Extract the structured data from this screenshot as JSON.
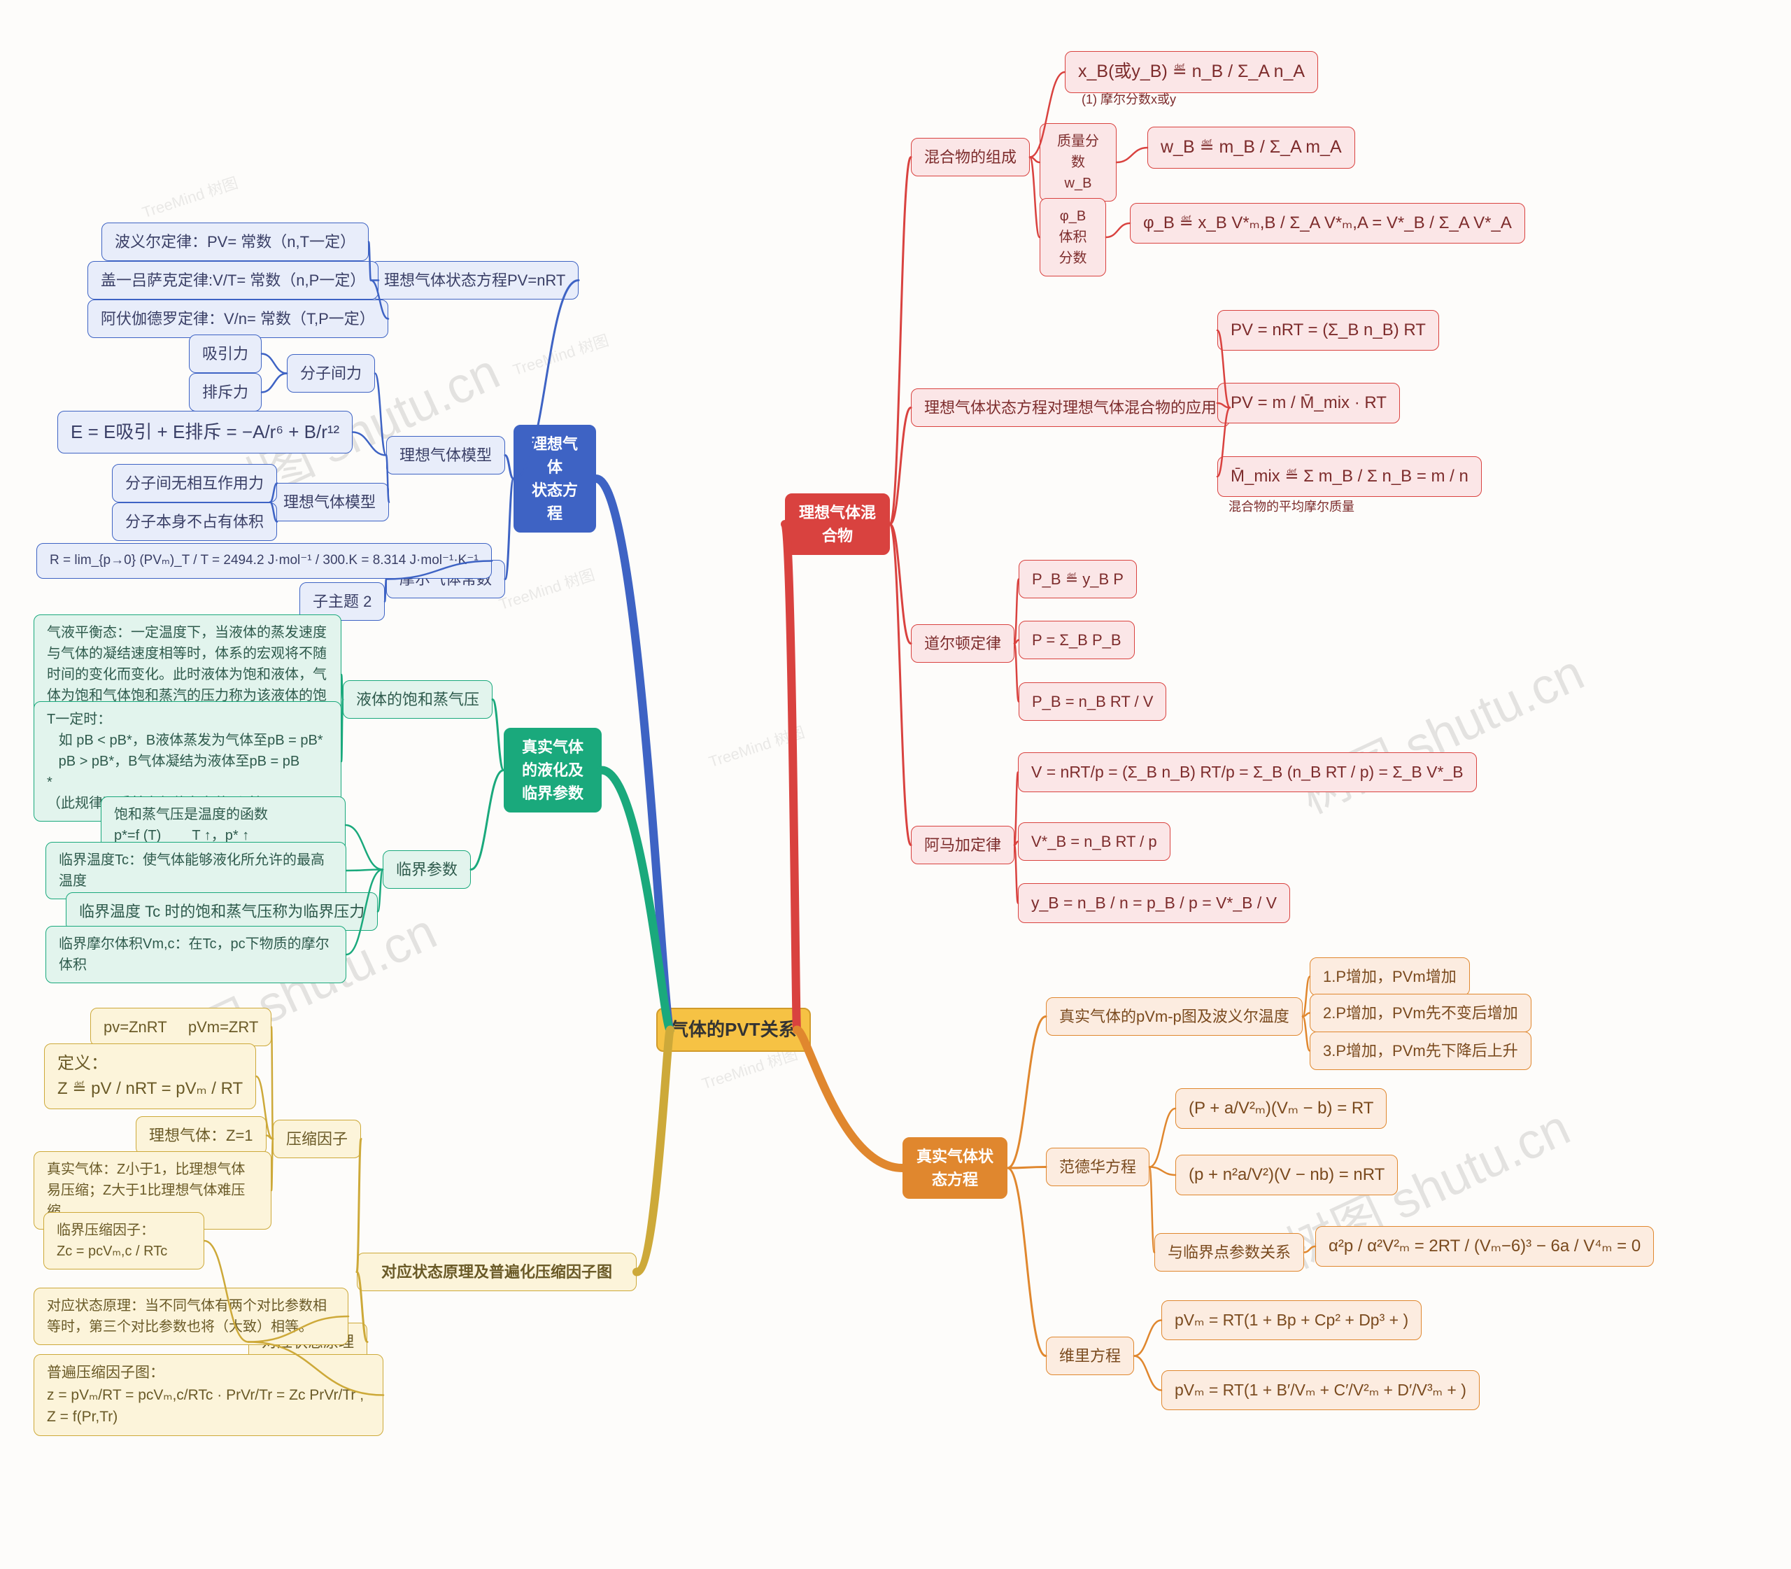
{
  "watermarks": [
    "树图 shutu.cn",
    "树图 shutu.cn",
    "树图 shutu.cn",
    "树图 shutu.cn"
  ],
  "small_watermarks": [
    "TreeMind 树图",
    "TreeMind 树图",
    "TreeMind 树图",
    "TreeMind 树图",
    "TreeMind 树图"
  ],
  "root": {
    "text": "气体的PVT关系",
    "bg": "#f6c244",
    "border": "#d19b2a",
    "fg": "#333"
  },
  "blue": {
    "hub": "理想气体\n状态方程",
    "bg": "#3e63c4",
    "fg": "#ffffff",
    "child_bg": "#e8edfa",
    "child_border": "#3e63c4",
    "child_fg": "#3a3f66"
  },
  "green": {
    "hub": "真实气体\n的液化及\n临界参数",
    "bg": "#1aa97c",
    "fg": "#ffffff",
    "child_bg": "#e2f4ed",
    "child_border": "#1aa97c",
    "child_fg": "#2e5a4c"
  },
  "yellow": {
    "hub": "对应状态原理及普遍化压缩因子图",
    "bg": "#e9c94c",
    "fg": "#5a4a17",
    "child_bg": "#fcf4da",
    "child_border": "#cda939",
    "child_fg": "#6a5a27"
  },
  "red": {
    "hub": "理想气体混\n合物",
    "bg": "#d9423f",
    "fg": "#ffffff",
    "child_bg": "#fbe6e7",
    "child_border": "#d9423f",
    "child_fg": "#7d2c2c"
  },
  "orange": {
    "hub": "真实气体状\n态方程",
    "bg": "#e0872e",
    "fg": "#ffffff",
    "child_bg": "#fcece0",
    "child_border": "#e0872e",
    "child_fg": "#7a4a1e"
  },
  "blue_nodes": {
    "n1": "理想气体状态方程PV=nRT",
    "n1a": "波义尔定律：PV= 常数（n,T一定）",
    "n1b": "盖一吕萨克定律:V/T= 常数（n,P一定）",
    "n1c": "阿伏伽德罗定律：V/n= 常数（T,P一定）",
    "n2": "理想气体模型",
    "n2a": "分子间力",
    "n2a1": "吸引力",
    "n2a2": "排斥力",
    "n2b": "E = E吸引 + E排斥 = −A/r⁶ + B/r¹²",
    "n2c": "理想气体模型",
    "n2c1": "分子间无相互作用力",
    "n2c2": "分子本身不占有体积",
    "n3": "摩尔气体常数",
    "n3a": "R = lim_{p→0} (PVₘ)_T / T = 2494.2 J·mol⁻¹ / 300.K = 8.314 J·mol⁻¹·K⁻¹",
    "n3b": "子主题 2"
  },
  "green_nodes": {
    "g1": "液体的饱和蒸气压",
    "g1a": "气液平衡态：一定温度下，当液体的蒸发速度与气体的凝结速度相等时，体系的宏观将不随时间的变化而变化。此时液体为饱和液体，气体为饱和气体饱和蒸汽的压力称为该液体的饱和蒸汽压。",
    "g1b": "T一定时：\n   如 pB < pB*，B液体蒸发为气体至pB = pB*\n   pB > pB*，B气体凝结为液体至pB = pB\n*\n（此规律不受其它气体存在的影响）",
    "g2": "临界参数",
    "g2a": "饱和蒸气压是温度的函数\np*=f (T)        T ↑，p* ↑",
    "g2b": "临界温度Tc：使气体能够液化所允许的最高温度",
    "g2c": "临界温度 Tc 时的饱和蒸气压称为临界压力",
    "g2d": "临界摩尔体积Vm,c：在Tc，pc下物质的摩尔体积"
  },
  "yellow_nodes": {
    "y1": "压缩因子",
    "y1a": "pv=ZnRT     pVm=ZRT",
    "y1b": "定义：\nZ ≝ pV / nRT = pVₘ / RT",
    "y1c": "理想气体：Z=1",
    "y1d": "真实气体：Z小于1，比理想气体易压缩；Z大于1比理想气体难压缩。",
    "y2": "对应状态原理",
    "y2a": "临界压缩因子：\nZc = pcVₘ,c / RTc",
    "y2b": "对应状态原理：当不同气体有两个对比参数相等时，第三个对比参数也将（大致）相等。",
    "y2c": "普遍压缩因子图：\nz = pVₘ/RT = pcVₘ,c/RTc · PrVr/Tr = Zc PrVr/Tr , Z = f(Pr,Tr)"
  },
  "red_nodes": {
    "r1": "混合物的组成",
    "r1a": "x_B(或y_B) ≝ n_B / Σ_A n_A",
    "r1a_note": "(1) 摩尔分数x或y",
    "r1b": "质量分数\nw_B",
    "r1bv": "w_B ≝ m_B / Σ_A m_A",
    "r1c": "φ_B\n体积分数",
    "r1cv": "φ_B ≝ x_B V*ₘ,B / Σ_A V*ₘ,A = V*_B / Σ_A V*_A",
    "r2": "理想气体状态方程对理想气体混合物的应用",
    "r2a": "PV = nRT = (Σ_B n_B) RT",
    "r2b": "PV = m / M̄_mix · RT",
    "r2c": "M̄_mix ≝ Σ m_B / Σ n_B = m / n",
    "r2c_note": "混合物的平均摩尔质量",
    "r3": "道尔顿定律",
    "r3a": "P_B ≝ y_B P",
    "r3b": "P = Σ_B P_B",
    "r3c": "P_B = n_B RT / V",
    "r4": "阿马加定律",
    "r4a": "V = nRT/p = (Σ_B n_B) RT/p = Σ_B (n_B RT / p) = Σ_B V*_B",
    "r4b": "V*_B = n_B RT / p",
    "r4c": "y_B = n_B / n = p_B / p = V*_B / V"
  },
  "orange_nodes": {
    "o1": "真实气体的pVm-p图及波义尔温度",
    "o1a": "1.P增加，PVm增加",
    "o1b": "2.P增加，PVm先不变后增加",
    "o1c": "3.P增加，PVm先下降后上升",
    "o2": "范德华方程",
    "o2a": "(P + a/V²ₘ)(Vₘ − b) = RT",
    "o2b": "(p + n²a/V²)(V − nb) = nRT",
    "o2c_label": "与临界点参数关系",
    "o2c": "α²p / α²V²ₘ = 2RT / (Vₘ−6)³ − 6a / V⁴ₘ = 0",
    "o3": "维里方程",
    "o3a": "pVₘ = RT(1 + Bp + Cp² + Dp³ + )",
    "o3b": "pVₘ = RT(1 + B′/Vₘ + C′/V²ₘ + D′/V³ₘ + )"
  },
  "edge_colors": {
    "blue": "#3e63c4",
    "green": "#1aa97c",
    "yellow": "#cda939",
    "red": "#d9423f",
    "orange": "#e0872e"
  }
}
